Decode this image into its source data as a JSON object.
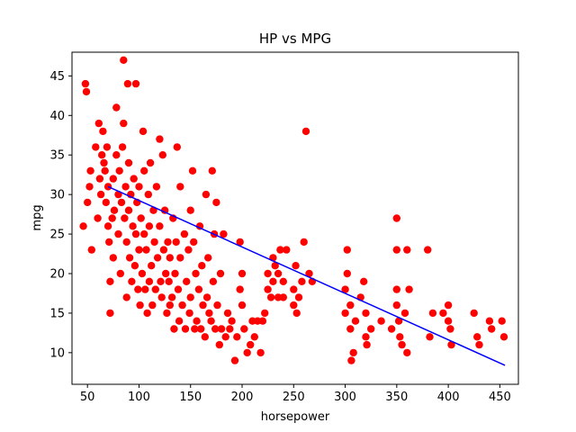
{
  "chart_data": {
    "type": "scatter",
    "title": "HP vs MPG",
    "xlabel": "horsepower",
    "ylabel": "mpg",
    "xlim": [
      35,
      468
    ],
    "ylim": [
      6,
      48
    ],
    "x_ticks": [
      50,
      100,
      150,
      200,
      250,
      300,
      350,
      400,
      450
    ],
    "y_ticks": [
      10,
      15,
      20,
      25,
      30,
      35,
      40,
      45
    ],
    "grid": false,
    "legend": "none",
    "colors": {
      "points": "#ff0000",
      "fit_line": "#0000ff",
      "axes": "#000000",
      "background": "#ffffff"
    },
    "series": [
      {
        "kind": "scatter",
        "points": [
          [
            46,
            26
          ],
          [
            48,
            44
          ],
          [
            49,
            43
          ],
          [
            50,
            29
          ],
          [
            52,
            31
          ],
          [
            53,
            33
          ],
          [
            54,
            23
          ],
          [
            58,
            36
          ],
          [
            60,
            27
          ],
          [
            61,
            39
          ],
          [
            62,
            32
          ],
          [
            63,
            30
          ],
          [
            64,
            35
          ],
          [
            65,
            38
          ],
          [
            66,
            34
          ],
          [
            67,
            33
          ],
          [
            68,
            29
          ],
          [
            69,
            36
          ],
          [
            70,
            31
          ],
          [
            70,
            26
          ],
          [
            71,
            24
          ],
          [
            72,
            15
          ],
          [
            72,
            19
          ],
          [
            74,
            27
          ],
          [
            75,
            32
          ],
          [
            75,
            22
          ],
          [
            76,
            28
          ],
          [
            78,
            41
          ],
          [
            78,
            35
          ],
          [
            80,
            25
          ],
          [
            80,
            30
          ],
          [
            81,
            33
          ],
          [
            82,
            20
          ],
          [
            83,
            29
          ],
          [
            84,
            36
          ],
          [
            85,
            47
          ],
          [
            85,
            39
          ],
          [
            86,
            27
          ],
          [
            87,
            31
          ],
          [
            88,
            24
          ],
          [
            88,
            17
          ],
          [
            89,
            44
          ],
          [
            90,
            28
          ],
          [
            90,
            34
          ],
          [
            91,
            22
          ],
          [
            92,
            30
          ],
          [
            93,
            19
          ],
          [
            94,
            26
          ],
          [
            95,
            32
          ],
          [
            96,
            21
          ],
          [
            97,
            44
          ],
          [
            97,
            25
          ],
          [
            98,
            29
          ],
          [
            99,
            18
          ],
          [
            100,
            31
          ],
          [
            100,
            23
          ],
          [
            101,
            16
          ],
          [
            102,
            27
          ],
          [
            103,
            20
          ],
          [
            104,
            38
          ],
          [
            105,
            25
          ],
          [
            105,
            33
          ],
          [
            106,
            18
          ],
          [
            107,
            23
          ],
          [
            108,
            15
          ],
          [
            109,
            30
          ],
          [
            110,
            26
          ],
          [
            110,
            19
          ],
          [
            111,
            34
          ],
          [
            112,
            21
          ],
          [
            113,
            16
          ],
          [
            114,
            28
          ],
          [
            115,
            24
          ],
          [
            116,
            18
          ],
          [
            117,
            31
          ],
          [
            118,
            22
          ],
          [
            120,
            37
          ],
          [
            120,
            26
          ],
          [
            121,
            19
          ],
          [
            122,
            17
          ],
          [
            123,
            35
          ],
          [
            124,
            23
          ],
          [
            125,
            28
          ],
          [
            126,
            20
          ],
          [
            127,
            15
          ],
          [
            128,
            24
          ],
          [
            129,
            19
          ],
          [
            130,
            22
          ],
          [
            130,
            16
          ],
          [
            132,
            17
          ],
          [
            133,
            27
          ],
          [
            134,
            13
          ],
          [
            135,
            20
          ],
          [
            136,
            24
          ],
          [
            137,
            36
          ],
          [
            138,
            18
          ],
          [
            139,
            14
          ],
          [
            140,
            22
          ],
          [
            140,
            31
          ],
          [
            142,
            16
          ],
          [
            144,
            25
          ],
          [
            145,
            13
          ],
          [
            146,
            19
          ],
          [
            148,
            23
          ],
          [
            149,
            15
          ],
          [
            150,
            28
          ],
          [
            150,
            17
          ],
          [
            152,
            33
          ],
          [
            153,
            24
          ],
          [
            154,
            13
          ],
          [
            155,
            20
          ],
          [
            156,
            14
          ],
          [
            158,
            18
          ],
          [
            159,
            26
          ],
          [
            160,
            13
          ],
          [
            161,
            21
          ],
          [
            162,
            16
          ],
          [
            164,
            12
          ],
          [
            165,
            30
          ],
          [
            166,
            17
          ],
          [
            167,
            22
          ],
          [
            168,
            15
          ],
          [
            170,
            14
          ],
          [
            171,
            33
          ],
          [
            172,
            19
          ],
          [
            173,
            25
          ],
          [
            174,
            13
          ],
          [
            175,
            29
          ],
          [
            176,
            16
          ],
          [
            178,
            11
          ],
          [
            179,
            20
          ],
          [
            180,
            13
          ],
          [
            182,
            25
          ],
          [
            184,
            12
          ],
          [
            186,
            15
          ],
          [
            188,
            13
          ],
          [
            190,
            14
          ],
          [
            193,
            9
          ],
          [
            195,
            12
          ],
          [
            198,
            18
          ],
          [
            198,
            24
          ],
          [
            200,
            20
          ],
          [
            200,
            16
          ],
          [
            202,
            13
          ],
          [
            205,
            10
          ],
          [
            208,
            11
          ],
          [
            210,
            14
          ],
          [
            212,
            12
          ],
          [
            215,
            14
          ],
          [
            218,
            10
          ],
          [
            220,
            14
          ],
          [
            222,
            15
          ],
          [
            225,
            20
          ],
          [
            225,
            18
          ],
          [
            228,
            17
          ],
          [
            230,
            22
          ],
          [
            230,
            19
          ],
          [
            232,
            21
          ],
          [
            235,
            17
          ],
          [
            235,
            20
          ],
          [
            237,
            23
          ],
          [
            240,
            19
          ],
          [
            240,
            17
          ],
          [
            243,
            23
          ],
          [
            250,
            18
          ],
          [
            250,
            16
          ],
          [
            252,
            21
          ],
          [
            253,
            15
          ],
          [
            255,
            17
          ],
          [
            258,
            19
          ],
          [
            260,
            24
          ],
          [
            262,
            38
          ],
          [
            265,
            20
          ],
          [
            268,
            19
          ],
          [
            300,
            15
          ],
          [
            300,
            18
          ],
          [
            302,
            23
          ],
          [
            302,
            20
          ],
          [
            305,
            16
          ],
          [
            305,
            13
          ],
          [
            306,
            9
          ],
          [
            308,
            10
          ],
          [
            310,
            14
          ],
          [
            315,
            17
          ],
          [
            318,
            19
          ],
          [
            320,
            15
          ],
          [
            320,
            12
          ],
          [
            321,
            11
          ],
          [
            325,
            13
          ],
          [
            335,
            14
          ],
          [
            345,
            13
          ],
          [
            350,
            27
          ],
          [
            350,
            23
          ],
          [
            350,
            18
          ],
          [
            350,
            16
          ],
          [
            352,
            14
          ],
          [
            353,
            12
          ],
          [
            355,
            11
          ],
          [
            358,
            15
          ],
          [
            360,
            23
          ],
          [
            360,
            10
          ],
          [
            362,
            18
          ],
          [
            380,
            23
          ],
          [
            382,
            12
          ],
          [
            385,
            15
          ],
          [
            395,
            15
          ],
          [
            400,
            16
          ],
          [
            400,
            14
          ],
          [
            402,
            13
          ],
          [
            403,
            11
          ],
          [
            425,
            15
          ],
          [
            428,
            12
          ],
          [
            430,
            11
          ],
          [
            440,
            14
          ],
          [
            442,
            13
          ],
          [
            452,
            14
          ],
          [
            454,
            12
          ]
        ]
      },
      {
        "kind": "fit_line",
        "points": [
          [
            70,
            31.0
          ],
          [
            455,
            8.4
          ]
        ]
      }
    ]
  }
}
